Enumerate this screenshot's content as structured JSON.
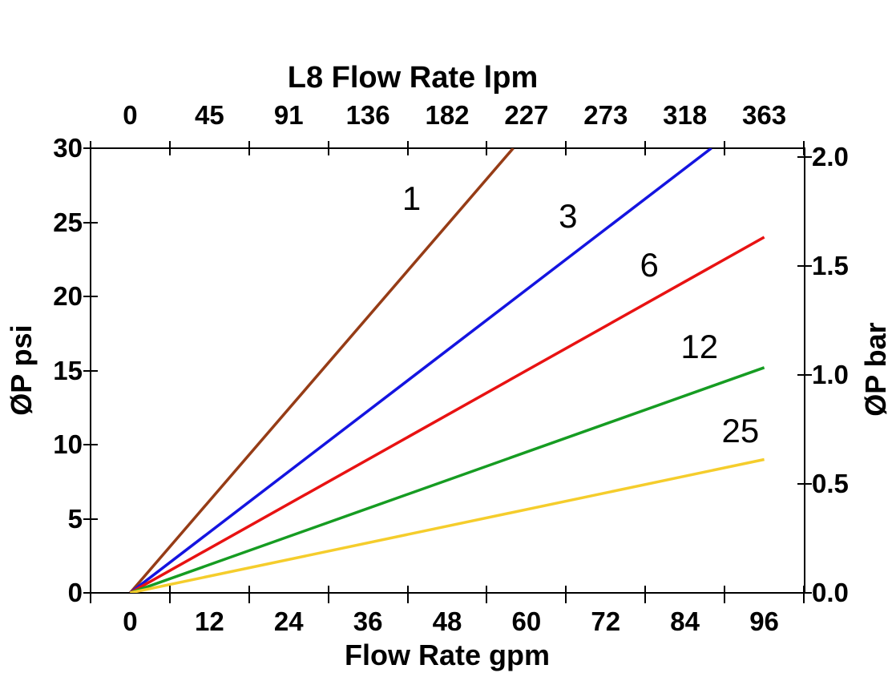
{
  "chart_data": {
    "type": "line",
    "title": "L8 Flow Rate lpm",
    "xlabel_bottom": "Flow Rate gpm",
    "xlabel_top": "L8 Flow Rate lpm",
    "ylabel_left": "ØP psi",
    "ylabel_right": "ØP bar",
    "x_ticks_bottom_gpm": [
      0,
      12,
      24,
      36,
      48,
      60,
      72,
      84,
      96
    ],
    "x_ticks_top_lpm": [
      0,
      45,
      91,
      136,
      182,
      227,
      273,
      318,
      363
    ],
    "y_ticks_left_psi": [
      0,
      5,
      10,
      15,
      20,
      25,
      30
    ],
    "y_ticks_right_bar": [
      "0.0",
      "0.5",
      "1.0",
      "1.5",
      "2.0"
    ],
    "xlim_gpm": [
      -6,
      102
    ],
    "ylim_psi": [
      0,
      30
    ],
    "x_boundary_tick_step_gpm": 12,
    "right_axis_psi_per_bar": 14.7,
    "axis_color": "#000000",
    "grid": "off",
    "legend": "inline-labels",
    "series": [
      {
        "label": "1",
        "color": "#963C16",
        "points_gpm_psi": [
          [
            0,
            0
          ],
          [
            58,
            30
          ]
        ],
        "label_pos_gpm_psi": [
          42.6,
          26.6
        ]
      },
      {
        "label": "3",
        "color": "#1414E0",
        "points_gpm_psi": [
          [
            0,
            0
          ],
          [
            88,
            30
          ]
        ],
        "label_pos_gpm_psi": [
          66.3,
          25.4
        ]
      },
      {
        "label": "6",
        "color": "#E81212",
        "points_gpm_psi": [
          [
            0,
            0
          ],
          [
            96,
            24
          ]
        ],
        "label_pos_gpm_psi": [
          78.6,
          22.1
        ]
      },
      {
        "label": "12",
        "color": "#169C22",
        "points_gpm_psi": [
          [
            0,
            0
          ],
          [
            96,
            15.2
          ]
        ],
        "label_pos_gpm_psi": [
          86.2,
          16.6
        ]
      },
      {
        "label": "25",
        "color": "#F5CD2C",
        "points_gpm_psi": [
          [
            0,
            0
          ],
          [
            96,
            9
          ]
        ],
        "label_pos_gpm_psi": [
          92.4,
          10.9
        ]
      }
    ]
  }
}
